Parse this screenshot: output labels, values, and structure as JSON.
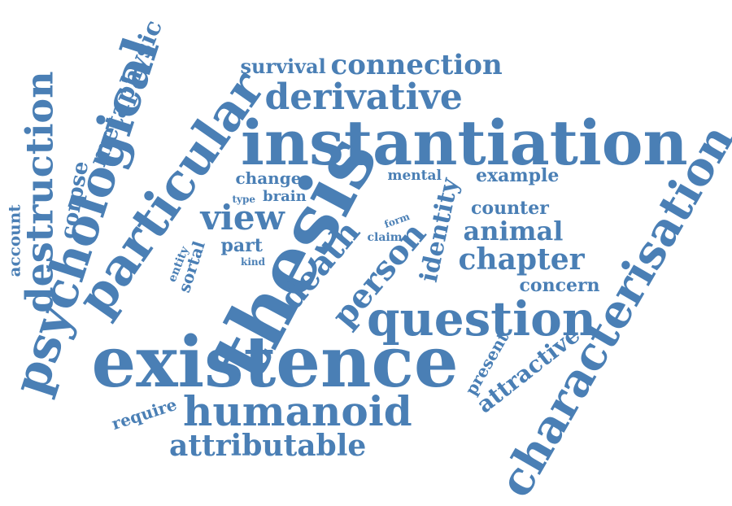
{
  "palette": {
    "word_color": "#4a7fb5",
    "background": "#ffffff"
  },
  "words": [
    {
      "text": "existence",
      "weight": 100
    },
    {
      "text": "thesis",
      "weight": 98
    },
    {
      "text": "instantiation",
      "weight": 92
    },
    {
      "text": "characterisation",
      "weight": 72
    },
    {
      "text": "psychological",
      "weight": 72
    },
    {
      "text": "particular",
      "weight": 68
    },
    {
      "text": "question",
      "weight": 68
    },
    {
      "text": "destruction",
      "weight": 58
    },
    {
      "text": "humanoid",
      "weight": 56
    },
    {
      "text": "derivative",
      "weight": 52
    },
    {
      "text": "person",
      "weight": 50
    },
    {
      "text": "death",
      "weight": 50
    },
    {
      "text": "view",
      "weight": 48
    },
    {
      "text": "attributable",
      "weight": 42
    },
    {
      "text": "connection",
      "weight": 40
    },
    {
      "text": "chapter",
      "weight": 40
    },
    {
      "text": "metaphysic",
      "weight": 36
    },
    {
      "text": "identity",
      "weight": 36
    },
    {
      "text": "animal",
      "weight": 34
    },
    {
      "text": "corpse",
      "weight": 30
    },
    {
      "text": "attractive",
      "weight": 30
    },
    {
      "text": "survival",
      "weight": 26
    },
    {
      "text": "account",
      "weight": 24
    },
    {
      "text": "present",
      "weight": 24
    },
    {
      "text": "concern",
      "weight": 24
    },
    {
      "text": "counter",
      "weight": 22
    },
    {
      "text": "example",
      "weight": 22
    },
    {
      "text": "sortal",
      "weight": 22
    },
    {
      "text": "part",
      "weight": 22
    },
    {
      "text": "require",
      "weight": 20
    },
    {
      "text": "change",
      "weight": 20
    },
    {
      "text": "brain",
      "weight": 20
    },
    {
      "text": "mental",
      "weight": 18
    },
    {
      "text": "entity",
      "weight": 16
    },
    {
      "text": "claim",
      "weight": 14
    },
    {
      "text": "form",
      "weight": 12
    },
    {
      "text": "type",
      "weight": 12
    },
    {
      "text": "kind",
      "weight": 12
    }
  ]
}
